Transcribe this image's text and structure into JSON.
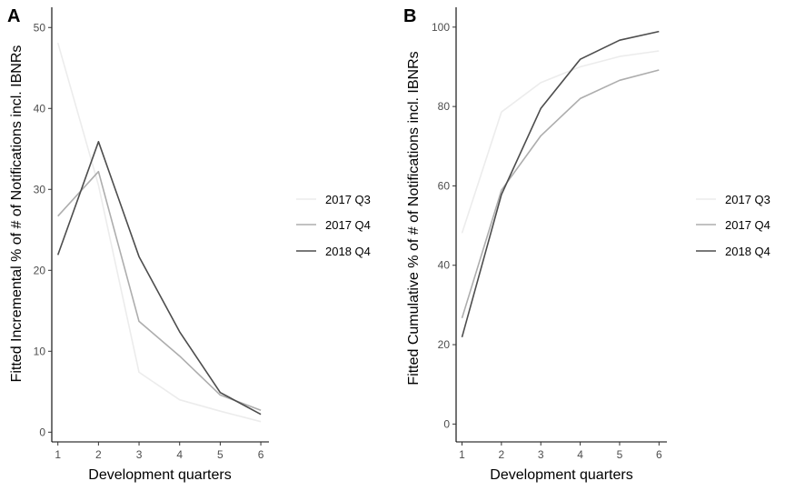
{
  "chart_data": [
    {
      "type": "line",
      "panel_label": "A",
      "xlabel": "Development quarters",
      "ylabel": "Fitted Incremental % of # of Notifications incl. IBNRs",
      "x": [
        1,
        2,
        3,
        4,
        5,
        6
      ],
      "xlim": [
        0.85,
        6.2
      ],
      "ylim": [
        -1.2,
        52.5
      ],
      "xticks": [
        "1",
        "2",
        "3",
        "4",
        "5",
        "6"
      ],
      "yticks": [
        "0",
        "10",
        "20",
        "30",
        "40",
        "50"
      ],
      "grid": false,
      "legend_position": "right",
      "series": [
        {
          "name": "2017 Q3",
          "color": "#ececec",
          "values": [
            48.1,
            30.5,
            7.4,
            4.0,
            2.6,
            1.3
          ]
        },
        {
          "name": "2017 Q4",
          "color": "#adadad",
          "values": [
            26.7,
            32.2,
            13.7,
            9.4,
            4.6,
            2.7
          ]
        },
        {
          "name": "2018 Q4",
          "color": "#4d4d4d",
          "values": [
            21.9,
            35.9,
            21.7,
            12.4,
            4.9,
            2.2
          ]
        }
      ]
    },
    {
      "type": "line",
      "panel_label": "B",
      "xlabel": "Development quarters",
      "ylabel": "Fitted Cumulative % of # of Notifications incl. IBNRs",
      "x": [
        1,
        2,
        3,
        4,
        5,
        6
      ],
      "xlim": [
        0.85,
        6.2
      ],
      "ylim": [
        -4.5,
        105
      ],
      "xticks": [
        "1",
        "2",
        "3",
        "4",
        "5",
        "6"
      ],
      "yticks": [
        "0",
        "20",
        "40",
        "60",
        "80",
        "100"
      ],
      "grid": false,
      "legend_position": "right",
      "series": [
        {
          "name": "2017 Q3",
          "color": "#ececec",
          "values": [
            48.1,
            78.6,
            86.0,
            90.0,
            92.6,
            94.0
          ]
        },
        {
          "name": "2017 Q4",
          "color": "#adadad",
          "values": [
            26.7,
            58.9,
            72.6,
            82.0,
            86.6,
            89.2
          ]
        },
        {
          "name": "2018 Q4",
          "color": "#4d4d4d",
          "values": [
            21.9,
            57.8,
            79.5,
            91.9,
            96.7,
            98.9
          ]
        }
      ]
    }
  ]
}
